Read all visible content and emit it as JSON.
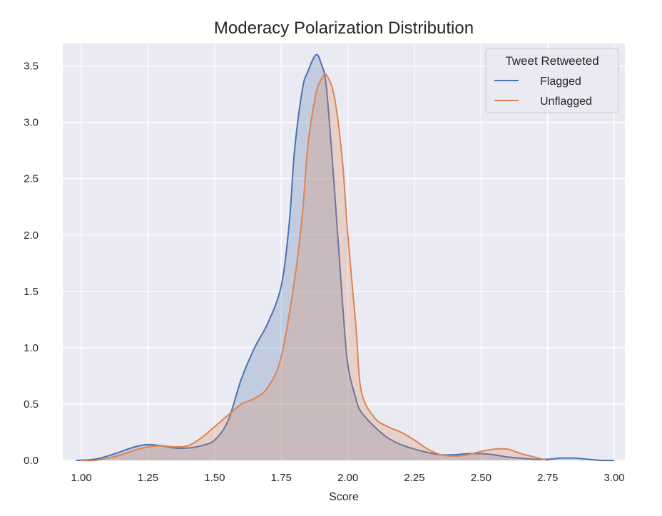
{
  "chart_data": {
    "type": "area",
    "title": "Moderacy Polarization Distribution",
    "xlabel": "Score",
    "ylabel": "",
    "xlim": [
      0.93,
      3.04
    ],
    "ylim": [
      0.0,
      3.7
    ],
    "xticks": [
      1.0,
      1.25,
      1.5,
      1.75,
      2.0,
      2.25,
      2.5,
      2.75,
      3.0
    ],
    "xtick_labels": [
      "1.00",
      "1.25",
      "1.50",
      "1.75",
      "2.00",
      "2.25",
      "2.50",
      "2.75",
      "3.00"
    ],
    "yticks": [
      0.0,
      0.5,
      1.0,
      1.5,
      2.0,
      2.5,
      3.0,
      3.5
    ],
    "ytick_labels": [
      "0.0",
      "0.5",
      "1.0",
      "1.5",
      "2.0",
      "2.5",
      "3.0",
      "3.5"
    ],
    "grid": true,
    "background": "#eaeaf2",
    "legend": {
      "title": "Tweet Retweeted",
      "position": "top-right"
    },
    "series": [
      {
        "name": "Flagged",
        "color": "#4c72b0",
        "x": [
          0.98,
          1.05,
          1.1,
          1.15,
          1.2,
          1.25,
          1.3,
          1.35,
          1.4,
          1.45,
          1.5,
          1.55,
          1.6,
          1.65,
          1.7,
          1.75,
          1.78,
          1.8,
          1.83,
          1.85,
          1.88,
          1.9,
          1.92,
          1.95,
          1.98,
          2.0,
          2.03,
          2.05,
          2.1,
          2.15,
          2.2,
          2.25,
          2.3,
          2.35,
          2.4,
          2.45,
          2.5,
          2.55,
          2.6,
          2.65,
          2.7,
          2.75,
          2.8,
          2.85,
          2.9,
          2.95,
          3.0
        ],
        "values": [
          0.0,
          0.01,
          0.04,
          0.08,
          0.12,
          0.14,
          0.13,
          0.11,
          0.11,
          0.13,
          0.18,
          0.35,
          0.72,
          1.0,
          1.22,
          1.55,
          2.1,
          2.75,
          3.3,
          3.45,
          3.6,
          3.52,
          3.3,
          2.4,
          1.4,
          0.85,
          0.55,
          0.43,
          0.3,
          0.2,
          0.14,
          0.1,
          0.07,
          0.05,
          0.05,
          0.06,
          0.06,
          0.05,
          0.03,
          0.02,
          0.01,
          0.01,
          0.02,
          0.02,
          0.01,
          0.0,
          0.0
        ]
      },
      {
        "name": "Unflagged",
        "color": "#dd8452",
        "x": [
          1.0,
          1.05,
          1.1,
          1.15,
          1.2,
          1.25,
          1.3,
          1.35,
          1.4,
          1.45,
          1.5,
          1.55,
          1.6,
          1.65,
          1.7,
          1.75,
          1.8,
          1.83,
          1.85,
          1.88,
          1.9,
          1.92,
          1.95,
          1.98,
          2.0,
          2.03,
          2.05,
          2.1,
          2.15,
          2.2,
          2.25,
          2.3,
          2.35,
          2.4,
          2.45,
          2.5,
          2.55,
          2.6,
          2.65,
          2.7,
          2.75
        ],
        "values": [
          0.0,
          0.0,
          0.02,
          0.05,
          0.09,
          0.12,
          0.13,
          0.12,
          0.13,
          0.2,
          0.3,
          0.4,
          0.5,
          0.55,
          0.65,
          0.92,
          1.6,
          2.2,
          2.8,
          3.25,
          3.38,
          3.42,
          3.22,
          2.65,
          2.0,
          1.2,
          0.62,
          0.38,
          0.3,
          0.25,
          0.18,
          0.1,
          0.05,
          0.04,
          0.05,
          0.08,
          0.1,
          0.1,
          0.06,
          0.03,
          0.0
        ]
      }
    ]
  }
}
